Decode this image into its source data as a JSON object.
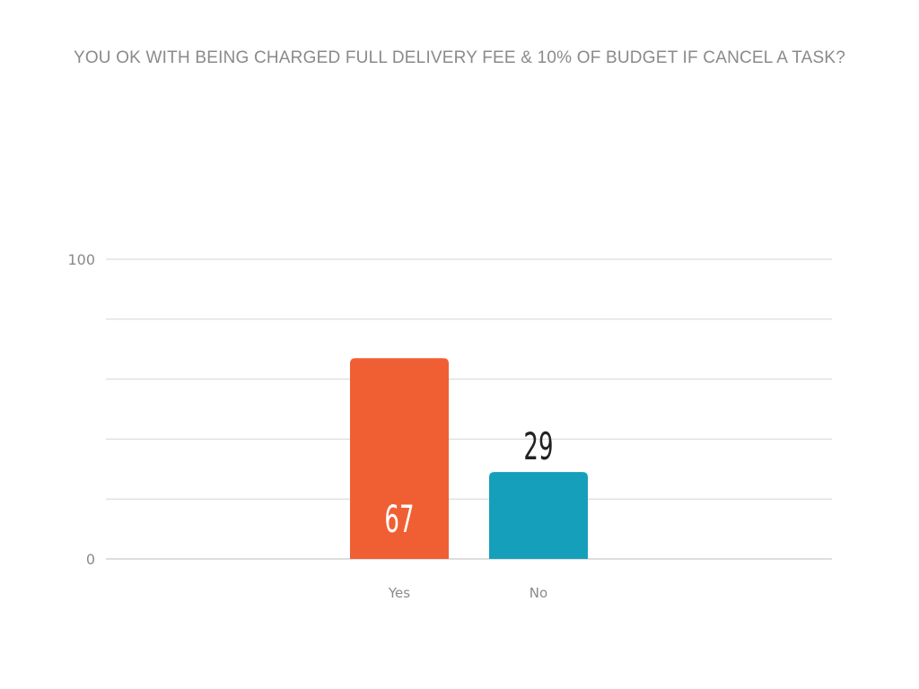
{
  "chart_data": {
    "type": "bar",
    "title": "YOU OK WITH BEING CHARGED FULL DELIVERY FEE & 10% OF BUDGET IF CANCEL A TASK?",
    "categories": [
      "Yes",
      "No"
    ],
    "values": [
      67,
      29
    ],
    "colors": [
      "#f05f33",
      "#169fbb"
    ],
    "ylim": [
      0,
      100
    ],
    "yticks": [
      0,
      100
    ],
    "grid_count": 5,
    "grid": true,
    "legend": "none",
    "xlabel": "",
    "ylabel": ""
  }
}
